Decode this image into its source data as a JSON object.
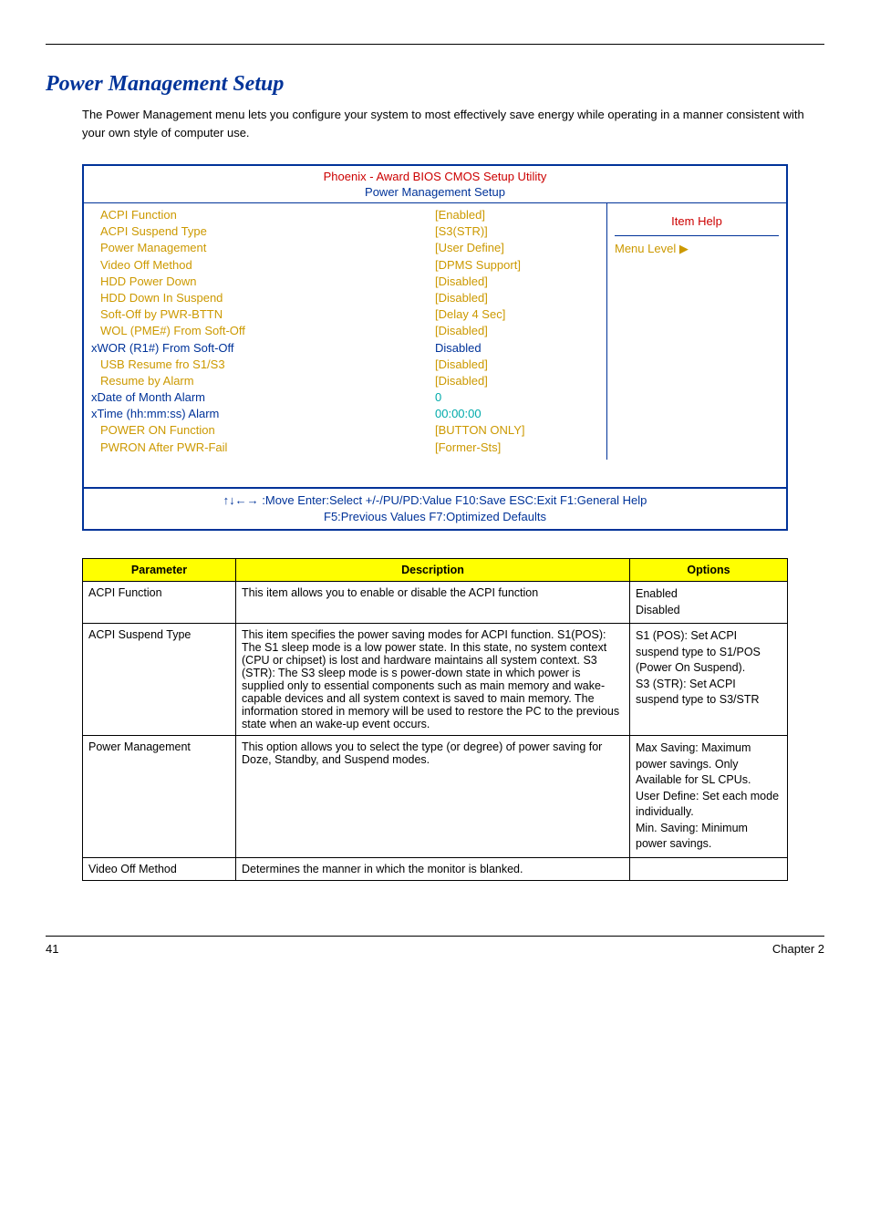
{
  "section_title": "Power Management Setup",
  "intro": "The Power Management menu lets you configure your system to most effectively save energy while operating in a manner consistent with your own style of computer use.",
  "bios": {
    "header": "Phoenix - Award BIOS CMOS Setup Utility",
    "subheader": "Power Management Setup",
    "item_help": "Item Help",
    "menu_level": "Menu Level ▶",
    "rows": [
      {
        "label": "ACPI Function",
        "value": "[Enabled]",
        "labelClass": "yellow",
        "valueClass": "yellow",
        "indent": 1
      },
      {
        "label": "ACPI Suspend Type",
        "value": "[S3(STR)]",
        "labelClass": "yellow",
        "valueClass": "yellow",
        "indent": 1
      },
      {
        "label": "Power Management",
        "value": "[User Define]",
        "labelClass": "yellow",
        "valueClass": "yellow",
        "indent": 1
      },
      {
        "label": "Video Off Method",
        "value": "[DPMS Support]",
        "labelClass": "yellow",
        "valueClass": "yellow",
        "indent": 1
      },
      {
        "label": "HDD Power Down",
        "value": "[Disabled]",
        "labelClass": "yellow",
        "valueClass": "yellow",
        "indent": 1
      },
      {
        "label": "HDD Down In Suspend",
        "value": "[Disabled]",
        "labelClass": "yellow",
        "valueClass": "yellow",
        "indent": 1
      },
      {
        "label": "Soft-Off by PWR-BTTN",
        "value": "[Delay 4 Sec]",
        "labelClass": "yellow",
        "valueClass": "yellow",
        "indent": 1
      },
      {
        "label": "WOL (PME#) From Soft-Off",
        "value": "[Disabled]",
        "labelClass": "yellow",
        "valueClass": "yellow",
        "indent": 1
      },
      {
        "label": "xWOR (R1#) From Soft-Off",
        "value": "Disabled",
        "labelClass": "darkblue",
        "valueClass": "darkblue",
        "indent": 0
      },
      {
        "label": "USB Resume fro S1/S3",
        "value": "[Disabled]",
        "labelClass": "yellow",
        "valueClass": "yellow",
        "indent": 1
      },
      {
        "label": "Resume by Alarm",
        "value": "[Disabled]",
        "labelClass": "yellow",
        "valueClass": "yellow",
        "indent": 1
      },
      {
        "label": "xDate of Month Alarm",
        "value": "0",
        "labelClass": "darkblue",
        "valueClass": "cyan",
        "indent": 0
      },
      {
        "label": "xTime (hh:mm:ss) Alarm",
        "value": "00:00:00",
        "labelClass": "darkblue",
        "valueClass": "cyan",
        "indent": 0
      },
      {
        "label": "POWER ON Function",
        "value": "[BUTTON ONLY]",
        "labelClass": "yellow",
        "valueClass": "yellow",
        "indent": 1
      },
      {
        "label": "PWRON After PWR-Fail",
        "value": "[Former-Sts]",
        "labelClass": "yellow",
        "valueClass": "yellow",
        "indent": 1
      }
    ],
    "footer1": "↑↓←→ :Move  Enter:Select   +/-/PU/PD:Value  F10:Save  ESC:Exit  F1:General Help",
    "footer2": "F5:Previous Values  F7:Optimized Defaults"
  },
  "table": {
    "headers": [
      "Parameter",
      "Description",
      "Options"
    ],
    "rows": [
      {
        "param": "ACPI Function",
        "desc": "This item allows you to enable or disable the ACPI function",
        "opts": "Enabled\nDisabled"
      },
      {
        "param": "ACPI Suspend Type",
        "desc": "This item specifies the power saving modes for ACPI function. S1(POS): The S1 sleep mode is a low power state. In this state, no system context (CPU or chipset) is lost and hardware maintains all system context. S3 (STR): The S3 sleep mode is s power-down state in which power is supplied only to essential components such as main memory and wake-capable devices and all system context is saved to main memory. The information stored in memory will be used to restore the PC to the previous state when an wake-up event occurs.",
        "opts": "S1 (POS): Set ACPI suspend type to S1/POS (Power On Suspend).\nS3 (STR): Set ACPI suspend type to S3/STR"
      },
      {
        "param": "Power Management",
        "desc": "This option allows you to select the type (or degree) of power saving for Doze, Standby, and Suspend modes.",
        "opts": "Max Saving: Maximum power savings. Only Available for SL CPUs.\nUser Define: Set each mode individually.\nMin. Saving: Minimum power savings."
      },
      {
        "param": "Video Off Method",
        "desc": "Determines the manner in which the monitor is blanked.",
        "opts": ""
      }
    ]
  },
  "footer": {
    "page": "41",
    "chapter": "Chapter 2"
  }
}
